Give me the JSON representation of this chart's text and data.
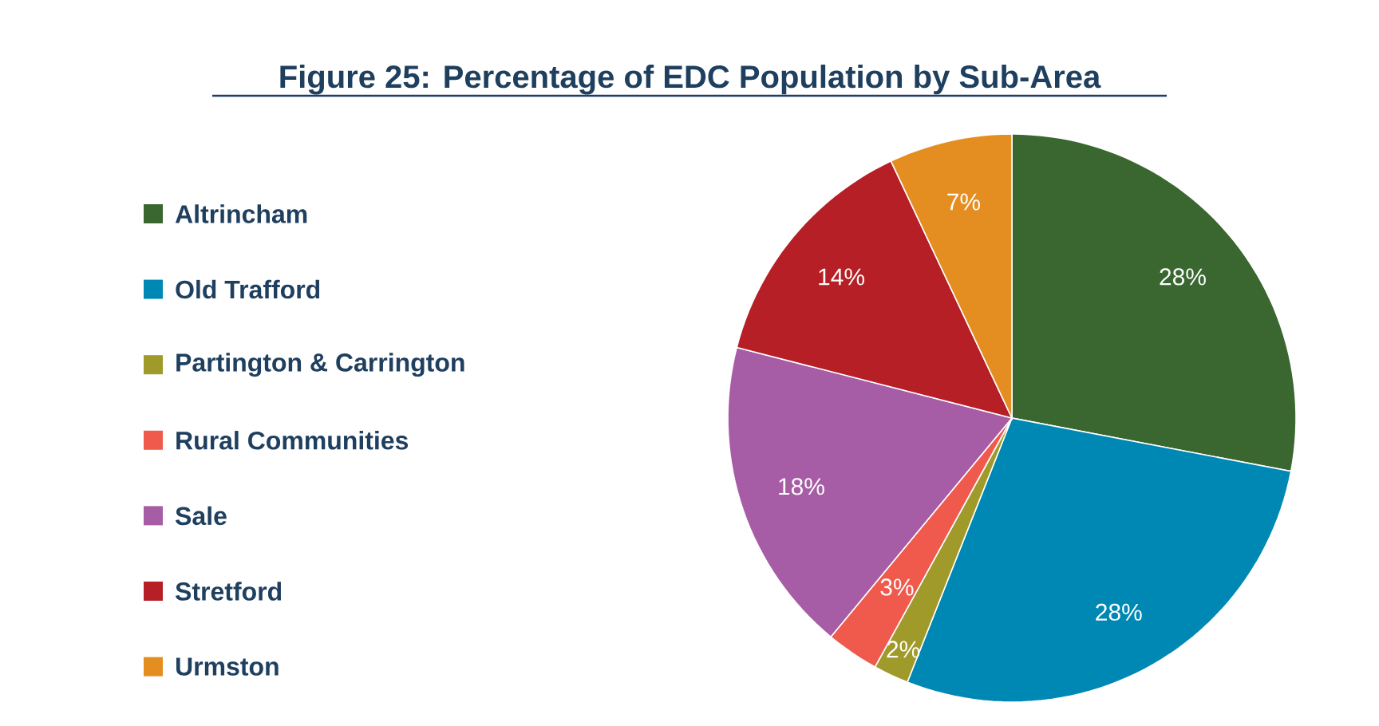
{
  "chart_data": {
    "type": "pie",
    "title": "Figure 25: Percentage of EDC Population by Sub-Area",
    "categories": [
      "Altrincham",
      "Old Trafford",
      "Partington & Carrington",
      "Rural Communities",
      "Sale",
      "Stretford",
      "Urmston"
    ],
    "values": [
      28,
      28,
      2,
      3,
      18,
      14,
      7
    ],
    "colors": [
      "#3a6630",
      "#0088b4",
      "#a09a2a",
      "#ef5a4c",
      "#a75da5",
      "#b51f25",
      "#e48e22"
    ],
    "value_labels": [
      "28%",
      "28%",
      "2%",
      "3%",
      "18%",
      "14%",
      "7%"
    ],
    "legend": "left"
  }
}
